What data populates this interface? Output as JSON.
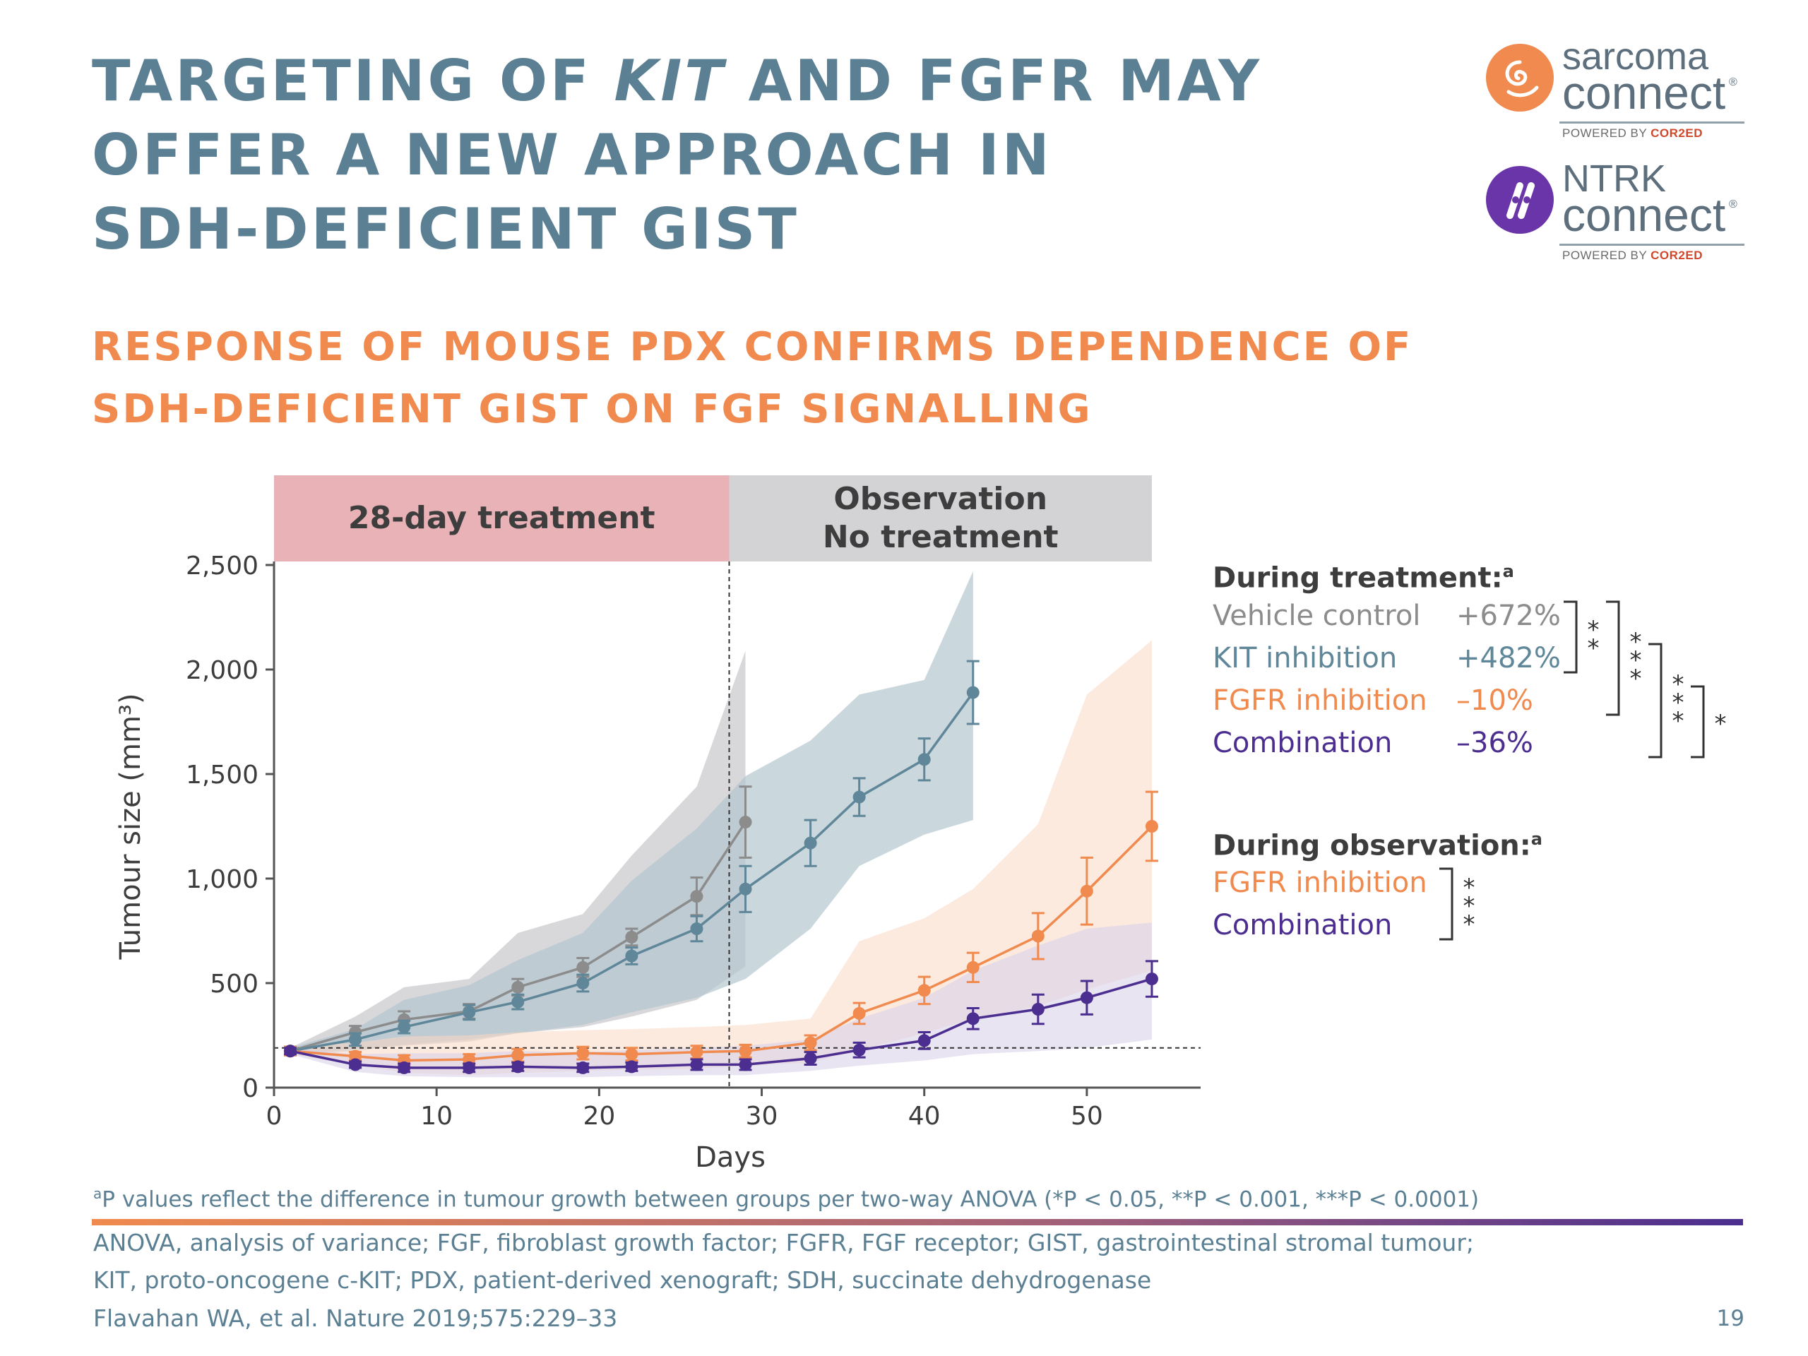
{
  "slide": {
    "title_lines": [
      "TARGETING OF KIT AND FGFR MAY",
      "OFFER A NEW APPROACH IN",
      "SDH-DEFICIENT GIST"
    ],
    "subtitle_lines": [
      "RESPONSE OF MOUSE PDX CONFIRMS DEPENDENCE OF",
      "SDH-DEFICIENT GIST ON FGF SIGNALLING"
    ],
    "page_number": "19",
    "colors": {
      "title": "#5b7f93",
      "subtitle": "#f08a4e",
      "vehicle": "#8c8c8c",
      "kit": "#5f8799",
      "fgfr": "#f08a4e",
      "combination": "#4b2e8f"
    }
  },
  "logos": {
    "sarcoma": {
      "word1": "sarcoma",
      "word2": "connect",
      "registered": "®",
      "powered_prefix": "POWERED BY ",
      "powered_brand": "COR2ED",
      "icon": "spiral-icon",
      "color": "#f08a4e"
    },
    "ntrk": {
      "word1": "NTRK",
      "word2": "connect",
      "registered": "®",
      "powered_prefix": "POWERED BY ",
      "powered_brand": "COR2ED",
      "icon": "chromosome-icon",
      "color": "#6a35a8"
    }
  },
  "chart_data": {
    "type": "line",
    "xlabel": "Days",
    "ylabel": "Tumour size (mm³)",
    "xlim": [
      0,
      57
    ],
    "ylim": [
      0,
      2500
    ],
    "xticks": [
      0,
      10,
      20,
      30,
      40,
      50
    ],
    "xtick_labels": [
      "0",
      "10",
      "20",
      "30",
      "40",
      "50"
    ],
    "yticks": [
      0,
      500,
      1000,
      1500,
      2000,
      2500
    ],
    "ytick_labels": [
      "0",
      "500",
      "1,000",
      "1,500",
      "2,000",
      "2,500"
    ],
    "grid": false,
    "phases": [
      {
        "label_lines": [
          "28-day treatment"
        ],
        "x_start": 0,
        "x_end": 28,
        "color": "#e8b2b6"
      },
      {
        "label_lines": [
          "Observation",
          "No treatment"
        ],
        "x_start": 28,
        "x_end": 54,
        "color": "#d3d3d6"
      }
    ],
    "treatment_end_day": 28,
    "baseline_y": 190,
    "series": [
      {
        "name": "Vehicle control",
        "color": "#8c8c8c",
        "x": [
          1,
          5,
          8,
          12,
          15,
          19,
          22,
          26,
          29
        ],
        "y": [
          175,
          265,
          325,
          365,
          480,
          575,
          720,
          915,
          1270
        ],
        "err": [
          20,
          30,
          40,
          35,
          40,
          45,
          40,
          90,
          170
        ],
        "band_lower": [
          160,
          185,
          200,
          220,
          260,
          290,
          340,
          420,
          580
        ],
        "band_upper": [
          190,
          340,
          480,
          520,
          740,
          830,
          1110,
          1440,
          2090
        ]
      },
      {
        "name": "KIT inhibition",
        "color": "#5f8799",
        "x": [
          1,
          5,
          8,
          12,
          15,
          19,
          22,
          26,
          29,
          33,
          36,
          40,
          43
        ],
        "y": [
          175,
          230,
          290,
          360,
          410,
          500,
          630,
          760,
          950,
          1170,
          1390,
          1570,
          1890
        ],
        "err": [
          20,
          30,
          30,
          35,
          35,
          40,
          40,
          60,
          110,
          110,
          90,
          100,
          150
        ],
        "band_lower": [
          160,
          175,
          205,
          230,
          260,
          300,
          360,
          430,
          520,
          760,
          1060,
          1210,
          1280
        ],
        "band_upper": [
          190,
          280,
          420,
          490,
          610,
          740,
          990,
          1240,
          1490,
          1660,
          1880,
          1950,
          2470
        ]
      },
      {
        "name": "FGFR inhibition",
        "color": "#f08a4e",
        "x": [
          1,
          5,
          8,
          12,
          15,
          19,
          22,
          26,
          29,
          33,
          36,
          40,
          43,
          47,
          50,
          54
        ],
        "y": [
          175,
          150,
          130,
          135,
          155,
          165,
          160,
          170,
          175,
          215,
          355,
          465,
          575,
          725,
          940,
          1250
        ],
        "err": [
          20,
          20,
          25,
          25,
          30,
          30,
          30,
          30,
          30,
          35,
          50,
          65,
          70,
          110,
          160,
          165
        ],
        "band_lower": [
          160,
          110,
          70,
          60,
          70,
          80,
          85,
          90,
          105,
          120,
          180,
          260,
          330,
          390,
          470,
          560
        ],
        "band_upper": [
          190,
          215,
          245,
          250,
          265,
          275,
          280,
          290,
          300,
          330,
          700,
          810,
          950,
          1260,
          1880,
          2140
        ]
      },
      {
        "name": "Combination",
        "color": "#4b2e8f",
        "x": [
          1,
          5,
          8,
          12,
          15,
          19,
          22,
          26,
          29,
          33,
          36,
          40,
          43,
          47,
          50,
          54
        ],
        "y": [
          175,
          110,
          95,
          95,
          100,
          95,
          100,
          110,
          110,
          140,
          180,
          225,
          330,
          375,
          430,
          520
        ],
        "err": [
          15,
          15,
          20,
          20,
          20,
          20,
          20,
          25,
          25,
          30,
          35,
          40,
          50,
          70,
          80,
          85
        ],
        "band_lower": [
          160,
          75,
          55,
          50,
          50,
          50,
          55,
          60,
          60,
          80,
          105,
          130,
          160,
          175,
          190,
          230
        ],
        "band_upper": [
          190,
          160,
          165,
          165,
          175,
          170,
          180,
          190,
          200,
          230,
          330,
          430,
          560,
          680,
          760,
          790
        ]
      }
    ]
  },
  "legend": {
    "treatment_heading": "During treatment:",
    "treatment_heading_sup": "a",
    "treatment_rows": [
      {
        "name": "Vehicle control",
        "value": "+672%",
        "color": "#8c8c8c"
      },
      {
        "name": "KIT inhibition",
        "value": "+482%",
        "color": "#5f8799"
      },
      {
        "name": "FGFR inhibition",
        "value": "–10%",
        "color": "#f08a4e"
      },
      {
        "name": "Combination",
        "value": "–36%",
        "color": "#4b2e8f"
      }
    ],
    "observation_heading": "During observation:",
    "observation_heading_sup": "a",
    "observation_rows": [
      {
        "name": "FGFR inhibition",
        "color": "#f08a4e"
      },
      {
        "name": "Combination",
        "color": "#4b2e8f"
      }
    ],
    "significance": [
      {
        "group": "treatment",
        "from_row": 0,
        "to_row": 1,
        "stars": "**"
      },
      {
        "group": "treatment",
        "from_row": 0,
        "to_row": 2,
        "stars": "***"
      },
      {
        "group": "treatment",
        "from_row": 1,
        "to_row": 3,
        "stars": "***"
      },
      {
        "group": "treatment",
        "from_row": 2,
        "to_row": 3,
        "stars": "*"
      },
      {
        "group": "observation",
        "from_row": 0,
        "to_row": 1,
        "stars": "***"
      }
    ]
  },
  "footnotes": {
    "significance_sup": "a",
    "significance_text": "P values reflect the difference in tumour growth between groups per two-way ANOVA (*P < 0.05, **P < 0.001, ***P < 0.0001)",
    "abbreviation_lines": [
      "ANOVA, analysis of variance; FGF, fibroblast growth factor; FGFR, FGF receptor; GIST, gastrointestinal stromal tumour;",
      "KIT, proto-oncogene c-KIT; PDX, patient-derived xenograft; SDH, succinate dehydrogenase"
    ],
    "reference": "Flavahan WA, et al. Nature 2019;575:229–33"
  }
}
